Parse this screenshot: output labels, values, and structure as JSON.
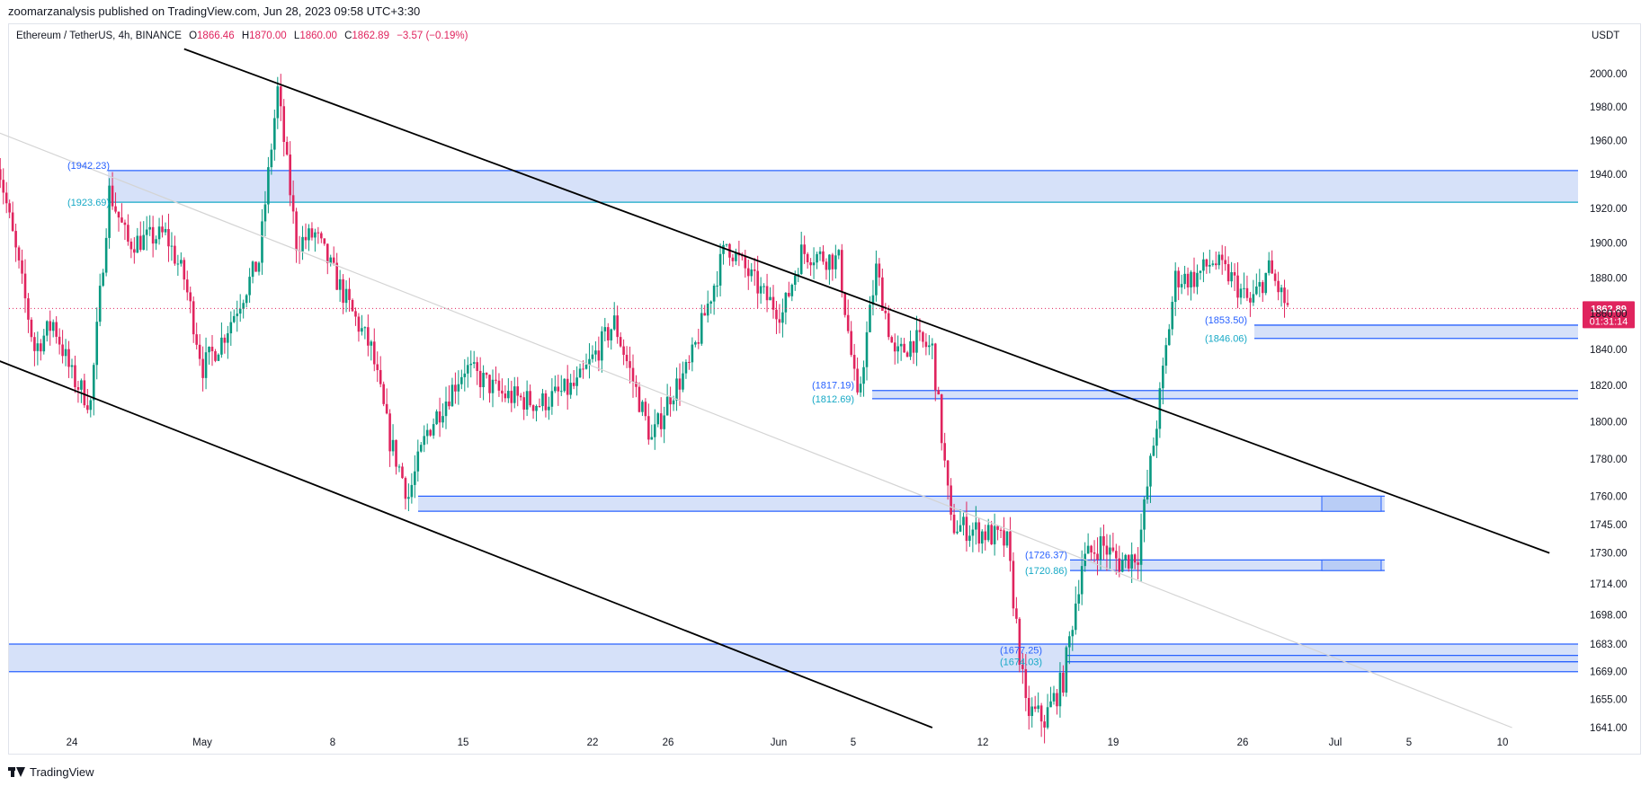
{
  "header": {
    "published": "zoomarzanalysis published on TradingView.com, Jun 28, 2023 09:58 UTC+3:30"
  },
  "legend": {
    "symbol": "Ethereum / TetherUS, 4h, BINANCE",
    "open_label": "O",
    "open": "1866.46",
    "high_label": "H",
    "high": "1870.00",
    "low_label": "L",
    "low": "1860.00",
    "close_label": "C",
    "close": "1862.89",
    "change": "−3.57 (−0.19%)"
  },
  "axis_unit": "USDT",
  "footer": {
    "brand": "TradingView",
    "logo_icon": "tradingview-logo-icon"
  },
  "colors": {
    "up": "#089981",
    "down": "#e0245e",
    "zone_fill": "#cfdcf8",
    "zone_line": "#2962ff",
    "zone_line_teal": "#17a9c6",
    "trend": "#000000",
    "trend_faint": "#d4d4d4",
    "price_tag": "#e0245e"
  },
  "chart_data": {
    "type": "candlestick",
    "timeframe": "4h",
    "symbol": "ETHUSDT",
    "exchange": "BINANCE",
    "x_ticks": [
      "24",
      "May",
      "8",
      "15",
      "22",
      "26",
      "Jun",
      "5",
      "12",
      "19",
      "26",
      "Jul",
      "5",
      "10"
    ],
    "y_ticks": [
      "2000.00",
      "1980.00",
      "1960.00",
      "1940.00",
      "1920.00",
      "1900.00",
      "1880.00",
      "1860.00",
      "1840.00",
      "1820.00",
      "1800.00",
      "1780.00",
      "1760.00",
      "1745.00",
      "1730.00",
      "1714.00",
      "1698.00",
      "1683.00",
      "1669.00",
      "1655.00",
      "1641.00"
    ],
    "y_scale": "log",
    "y_range": [
      1641,
      2015
    ],
    "last_price": "1862.89",
    "countdown": "01:31:14",
    "price_path": [
      {
        "date": "2023-04-20",
        "price": 1950
      },
      {
        "date": "2023-04-22",
        "price": 1840
      },
      {
        "date": "2023-04-23",
        "price": 1855
      },
      {
        "date": "2023-04-24",
        "price": 1825
      },
      {
        "date": "2023-04-25",
        "price": 1810
      },
      {
        "date": "2023-04-26",
        "price": 1930
      },
      {
        "date": "2023-04-27",
        "price": 1900
      },
      {
        "date": "2023-04-29",
        "price": 1905
      },
      {
        "date": "2023-04-30",
        "price": 1880
      },
      {
        "date": "2023-05-01",
        "price": 1830
      },
      {
        "date": "2023-05-02",
        "price": 1845
      },
      {
        "date": "2023-05-04",
        "price": 1890
      },
      {
        "date": "2023-05-05",
        "price": 1990
      },
      {
        "date": "2023-05-06",
        "price": 1900
      },
      {
        "date": "2023-05-07",
        "price": 1905
      },
      {
        "date": "2023-05-09",
        "price": 1860
      },
      {
        "date": "2023-05-10",
        "price": 1840
      },
      {
        "date": "2023-05-11",
        "price": 1790
      },
      {
        "date": "2023-05-12",
        "price": 1760
      },
      {
        "date": "2023-05-13",
        "price": 1795
      },
      {
        "date": "2023-05-15",
        "price": 1830
      },
      {
        "date": "2023-05-17",
        "price": 1815
      },
      {
        "date": "2023-05-19",
        "price": 1810
      },
      {
        "date": "2023-05-21",
        "price": 1820
      },
      {
        "date": "2023-05-23",
        "price": 1855
      },
      {
        "date": "2023-05-25",
        "price": 1790
      },
      {
        "date": "2023-05-26",
        "price": 1815
      },
      {
        "date": "2023-05-27",
        "price": 1830
      },
      {
        "date": "2023-05-29",
        "price": 1900
      },
      {
        "date": "2023-05-31",
        "price": 1870
      },
      {
        "date": "2023-06-01",
        "price": 1860
      },
      {
        "date": "2023-06-02",
        "price": 1895
      },
      {
        "date": "2023-06-04",
        "price": 1890
      },
      {
        "date": "2023-06-05",
        "price": 1810
      },
      {
        "date": "2023-06-06",
        "price": 1885
      },
      {
        "date": "2023-06-07",
        "price": 1835
      },
      {
        "date": "2023-06-08",
        "price": 1845
      },
      {
        "date": "2023-06-09",
        "price": 1840
      },
      {
        "date": "2023-06-10",
        "price": 1745
      },
      {
        "date": "2023-06-12",
        "price": 1740
      },
      {
        "date": "2023-06-13",
        "price": 1735
      },
      {
        "date": "2023-06-14",
        "price": 1650
      },
      {
        "date": "2023-06-15",
        "price": 1645
      },
      {
        "date": "2023-06-16",
        "price": 1665
      },
      {
        "date": "2023-06-17",
        "price": 1725
      },
      {
        "date": "2023-06-18",
        "price": 1735
      },
      {
        "date": "2023-06-19",
        "price": 1725
      },
      {
        "date": "2023-06-20",
        "price": 1730
      },
      {
        "date": "2023-06-21",
        "price": 1800
      },
      {
        "date": "2023-06-22",
        "price": 1880
      },
      {
        "date": "2023-06-23",
        "price": 1880
      },
      {
        "date": "2023-06-24",
        "price": 1890
      },
      {
        "date": "2023-06-25",
        "price": 1880
      },
      {
        "date": "2023-06-26",
        "price": 1865
      },
      {
        "date": "2023-06-27",
        "price": 1885
      },
      {
        "date": "2023-06-28",
        "price": 1862.89
      }
    ],
    "zones": [
      {
        "top": 1942.23,
        "bottom": 1923.69,
        "labels": [
          "(1942.23)",
          "(1923.69)"
        ]
      },
      {
        "top": 1853.5,
        "bottom": 1846.06,
        "labels": [
          "(1853.50)",
          "(1846.06)"
        ]
      },
      {
        "top": 1817.19,
        "bottom": 1812.69,
        "labels": [
          "(1817.19)",
          "(1812.69)"
        ]
      },
      {
        "top": 1760.0,
        "bottom": 1752.0,
        "labels": []
      },
      {
        "top": 1726.37,
        "bottom": 1720.86,
        "labels": [
          "(1726.37)",
          "(1720.86)"
        ]
      },
      {
        "top": 1683.0,
        "bottom": 1669.0,
        "labels": []
      },
      {
        "top": 1677.25,
        "bottom": 1674.03,
        "labels": [
          "(1677.25)",
          "(1674.03)"
        ]
      }
    ],
    "trendlines": [
      {
        "style": "solid",
        "from": {
          "date": "2023-04-20",
          "price": 1834
        },
        "to": {
          "date": "2023-06-09",
          "price": 1641
        }
      },
      {
        "style": "solid",
        "from": {
          "date": "2023-04-30",
          "price": 2015
        },
        "to": {
          "date": "2023-07-12",
          "price": 1730
        }
      },
      {
        "style": "faint",
        "from": {
          "date": "2023-04-20",
          "price": 1965
        },
        "to": {
          "date": "2023-07-10",
          "price": 1641
        }
      }
    ]
  }
}
